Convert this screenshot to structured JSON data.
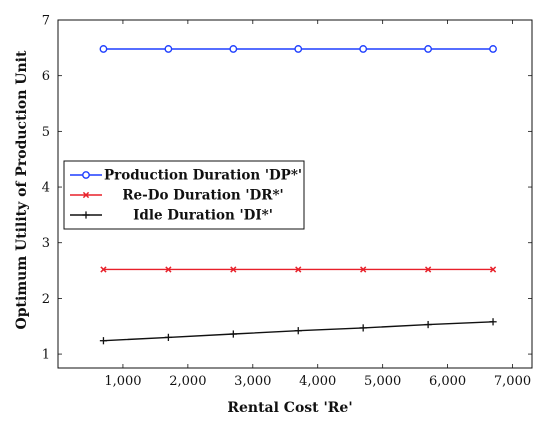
{
  "chart_data": {
    "type": "line",
    "x": [
      700,
      1700,
      2700,
      3700,
      4700,
      5700,
      6700
    ],
    "series": [
      {
        "name": "Production Duration 'DP*'",
        "color": "#1f3fff",
        "marker": "circle",
        "values": [
          6.48,
          6.48,
          6.48,
          6.48,
          6.48,
          6.48,
          6.48
        ]
      },
      {
        "name": "Re-Do Duration 'DR*'",
        "color": "#e8202a",
        "marker": "x",
        "values": [
          2.52,
          2.52,
          2.52,
          2.52,
          2.52,
          2.52,
          2.52
        ]
      },
      {
        "name": "Idle Duration 'DI*'",
        "color": "#111111",
        "marker": "plus",
        "values": [
          1.24,
          1.3,
          1.36,
          1.42,
          1.47,
          1.53,
          1.58
        ]
      }
    ],
    "xlabel": "Rental Cost 'Re'",
    "ylabel": "Optimum Utility of Production Unit",
    "xlim": [
      0,
      7300
    ],
    "ylim": [
      0.75,
      7
    ],
    "xticks": [
      1000,
      2000,
      3000,
      4000,
      5000,
      6000,
      7000
    ],
    "xtick_labels": [
      "1,000",
      "2,000",
      "3,000",
      "4,000",
      "5,000",
      "6,000",
      "7,000"
    ],
    "yticks": [
      1,
      2,
      3,
      4,
      5,
      6,
      7
    ],
    "ytick_labels": [
      "1",
      "2",
      "3",
      "4",
      "5",
      "6",
      "7"
    ],
    "grid": false,
    "legend_position": "middle-left"
  }
}
